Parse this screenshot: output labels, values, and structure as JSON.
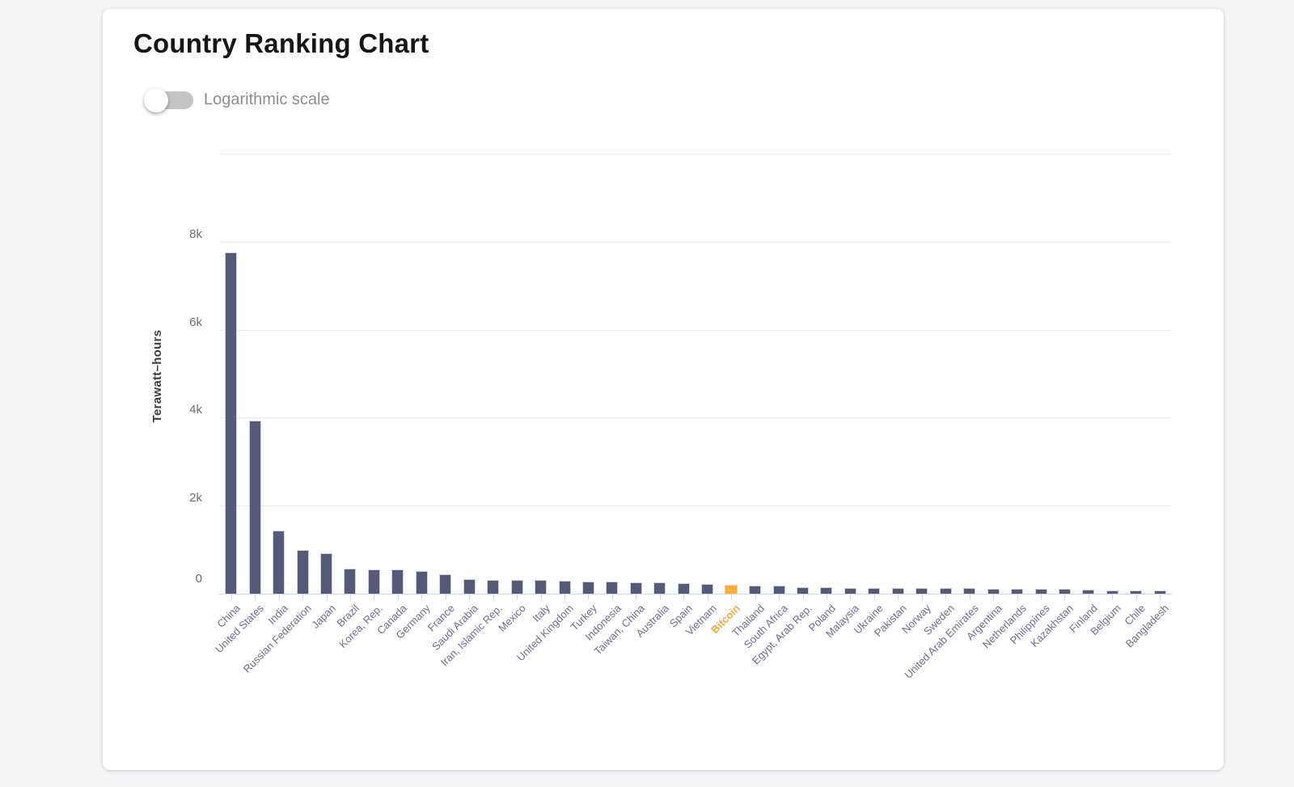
{
  "page": {
    "background": "#f3f5f8"
  },
  "card": {
    "title": "Country Ranking Chart"
  },
  "toggle": {
    "label": "Logarithmic scale",
    "state": "off"
  },
  "chart_data": {
    "type": "bar",
    "title": "Country Ranking Chart",
    "xlabel": "",
    "ylabel": "Terawatt–hours",
    "ylim": [
      0,
      10000
    ],
    "ytick_interval": 2000,
    "ytick_labels": [
      "0",
      "2k",
      "4k",
      "6k",
      "8k"
    ],
    "grid": true,
    "legend": "none",
    "highlight_category": "Bitcoin",
    "categories": [
      "China",
      "United States",
      "India",
      "Russian Federation",
      "Japan",
      "Brazil",
      "Korea, Rep.",
      "Canada",
      "Germany",
      "France",
      "Saudi Arabia",
      "Iran, Islamic Rep.",
      "Mexico",
      "Italy",
      "United Kingdom",
      "Turkey",
      "Indonesia",
      "Taiwan, China",
      "Australia",
      "Spain",
      "Vietnam",
      "Bitcoin",
      "Thailand",
      "South Africa",
      "Egypt, Arab Rep.",
      "Poland",
      "Malaysia",
      "Ukraine",
      "Pakistan",
      "Norway",
      "Sweden",
      "United Arab Emirates",
      "Argentina",
      "Netherlands",
      "Philippines",
      "Kazakhstan",
      "Finland",
      "Belgium",
      "Chile",
      "Bangladesh"
    ],
    "values": [
      7755,
      3935,
      1430,
      985,
      915,
      565,
      558,
      552,
      512,
      440,
      340,
      318,
      313,
      310,
      288,
      283,
      278,
      266,
      249,
      232,
      226,
      200,
      185,
      180,
      155,
      152,
      136,
      128,
      125,
      123,
      122,
      120,
      118,
      112,
      108,
      102,
      85,
      82,
      79,
      76
    ],
    "units": "TWh",
    "colors": {
      "bar": "#545b78",
      "bar_stroke": "#ccd2e8",
      "highlight_bar": "#fbb033",
      "highlight_stroke": "#fcd08d",
      "axis_line": "#ccd6eb",
      "gridline": "#e9e9e9",
      "x_label": "#696f93",
      "highlight_label": "#f9a43d",
      "y_label": "#6e6e6e"
    }
  }
}
